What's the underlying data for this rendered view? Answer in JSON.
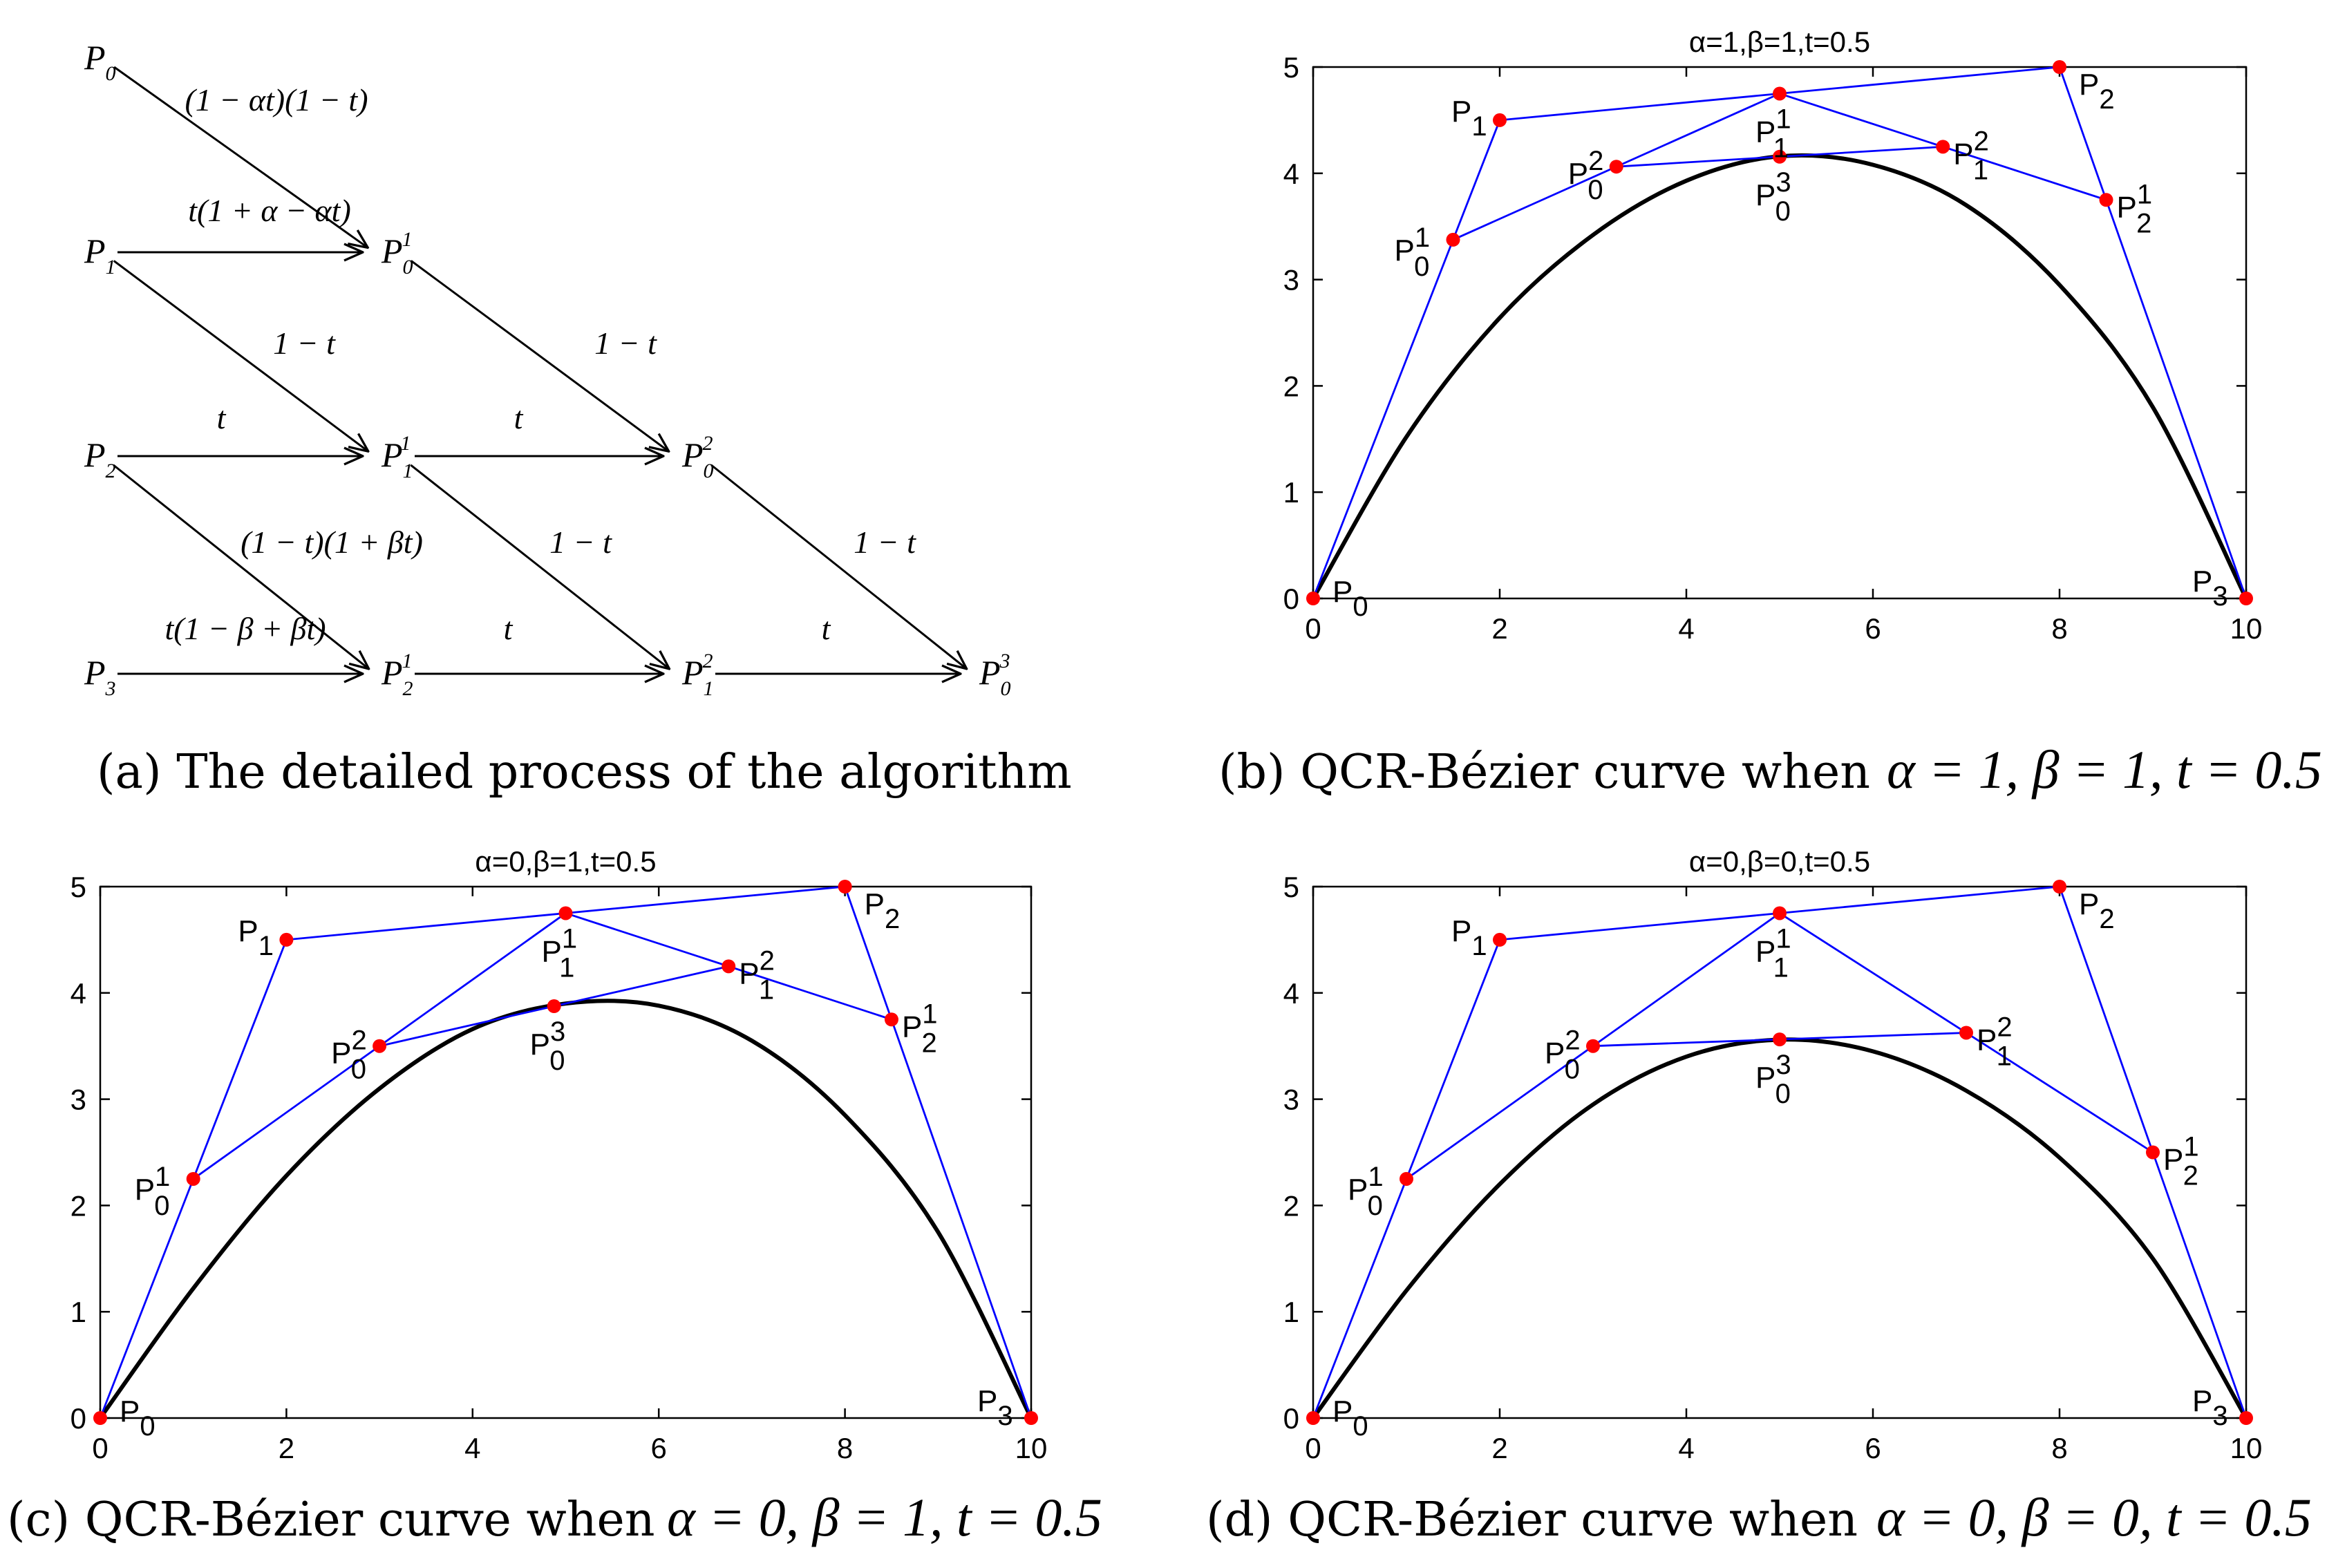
{
  "diagram": {
    "nodes": {
      "P0": {
        "base": "P",
        "sub": "0",
        "sup": ""
      },
      "P1": {
        "base": "P",
        "sub": "1",
        "sup": ""
      },
      "P2": {
        "base": "P",
        "sub": "2",
        "sup": ""
      },
      "P3": {
        "base": "P",
        "sub": "3",
        "sup": ""
      },
      "P01": {
        "base": "P",
        "sub": "0",
        "sup": "1"
      },
      "P11": {
        "base": "P",
        "sub": "1",
        "sup": "1"
      },
      "P21": {
        "base": "P",
        "sub": "2",
        "sup": "1"
      },
      "P02": {
        "base": "P",
        "sub": "0",
        "sup": "2"
      },
      "P12": {
        "base": "P",
        "sub": "1",
        "sup": "2"
      },
      "P03": {
        "base": "P",
        "sub": "0",
        "sup": "3"
      }
    },
    "edge_labels": {
      "p0_p01": "(1 − αt)(1 − t)",
      "p1_p01": "t(1 + α − αt)",
      "p1_p11": "1 − t",
      "p2_p11": "t",
      "p2_p21": "(1 − t)(1 + βt)",
      "p3_p21": "t(1 − β + βt)",
      "p01_p02": "1 − t",
      "p11_p02": "t",
      "p11_p12": "1 − t",
      "p21_p12": "t",
      "p02_p03": "1 − t",
      "p12_p03": "t"
    }
  },
  "captions": {
    "a": "(a) The detailed process of the algorithm",
    "b_text": "(b) QCR-Bézier curve when",
    "b_math": "α = 1, β = 1, t = 0.5",
    "c_text": "(c) QCR-Bézier curve when",
    "c_math": "α = 0, β = 1, t = 0.5",
    "d_text": "(d) QCR-Bézier curve when",
    "d_math": "α = 0, β = 0, t = 0.5"
  },
  "chart_data": [
    {
      "type": "line",
      "panel": "b",
      "title": "α=1,β=1,t=0.5",
      "xlim": [
        0,
        10
      ],
      "ylim": [
        0,
        5
      ],
      "xticks": [
        "0",
        "2",
        "4",
        "6",
        "8",
        "10"
      ],
      "yticks": [
        "0",
        "1",
        "2",
        "3",
        "4",
        "5"
      ],
      "colors": {
        "polygon": "#0000ff",
        "curve": "#000000",
        "points": "#ff0000"
      },
      "control_points": {
        "P0": [
          0,
          0
        ],
        "P1": [
          2,
          4.5
        ],
        "P2": [
          8,
          5
        ],
        "P3": [
          10,
          0
        ]
      },
      "points": {
        "P01": [
          1.5,
          3.375
        ],
        "P11": [
          5,
          4.75
        ],
        "P21": [
          8.5,
          3.75
        ],
        "P02": [
          3.25,
          4.0625
        ],
        "P12": [
          6.75,
          4.25
        ],
        "P03": [
          5,
          4.156
        ]
      },
      "series": [
        {
          "values": [
            [
              0,
              0
            ],
            [
              1,
              1.52
            ],
            [
              2,
              2.64
            ],
            [
              3,
              3.42
            ],
            [
              4,
              3.93
            ],
            [
              5,
              4.16
            ],
            [
              6,
              4.08
            ],
            [
              7,
              3.7
            ],
            [
              8,
              2.95
            ],
            [
              9,
              1.8
            ],
            [
              10,
              0
            ]
          ]
        }
      ]
    },
    {
      "type": "line",
      "panel": "c",
      "title": "α=0,β=1,t=0.5",
      "xlim": [
        0,
        10
      ],
      "ylim": [
        0,
        5
      ],
      "xticks": [
        "0",
        "2",
        "4",
        "6",
        "8",
        "10"
      ],
      "yticks": [
        "0",
        "1",
        "2",
        "3",
        "4",
        "5"
      ],
      "colors": {
        "polygon": "#0000ff",
        "curve": "#000000",
        "points": "#ff0000"
      },
      "control_points": {
        "P0": [
          0,
          0
        ],
        "P1": [
          2,
          4.5
        ],
        "P2": [
          8,
          5
        ],
        "P3": [
          10,
          0
        ]
      },
      "points": {
        "P01": [
          1,
          2.25
        ],
        "P11": [
          5,
          4.75
        ],
        "P21": [
          8.5,
          3.75
        ],
        "P02": [
          3,
          3.5
        ],
        "P12": [
          6.75,
          4.25
        ],
        "P03": [
          4.875,
          3.875
        ]
      },
      "series": [
        {
          "values": [
            [
              0,
              0
            ],
            [
              1,
              1.22
            ],
            [
              2,
              2.28
            ],
            [
              3,
              3.1
            ],
            [
              4,
              3.66
            ],
            [
              5,
              3.9
            ],
            [
              6,
              3.88
            ],
            [
              7,
              3.55
            ],
            [
              8,
              2.85
            ],
            [
              9,
              1.75
            ],
            [
              10,
              0
            ]
          ]
        }
      ]
    },
    {
      "type": "line",
      "panel": "d",
      "title": "α=0,β=0,t=0.5",
      "xlim": [
        0,
        10
      ],
      "ylim": [
        0,
        5
      ],
      "xticks": [
        "0",
        "2",
        "4",
        "6",
        "8",
        "10"
      ],
      "yticks": [
        "0",
        "1",
        "2",
        "3",
        "4",
        "5"
      ],
      "colors": {
        "polygon": "#0000ff",
        "curve": "#000000",
        "points": "#ff0000"
      },
      "control_points": {
        "P0": [
          0,
          0
        ],
        "P1": [
          2,
          4.5
        ],
        "P2": [
          8,
          5
        ],
        "P3": [
          10,
          0
        ]
      },
      "points": {
        "P01": [
          1,
          2.25
        ],
        "P11": [
          5,
          4.75
        ],
        "P21": [
          9,
          2.5
        ],
        "P02": [
          3,
          3.5
        ],
        "P12": [
          7,
          3.625
        ],
        "P03": [
          5,
          3.5625
        ]
      },
      "series": [
        {
          "values": [
            [
              0,
              0
            ],
            [
              1,
              1.2
            ],
            [
              2,
              2.2
            ],
            [
              3,
              2.95
            ],
            [
              4,
              3.4
            ],
            [
              5,
              3.56
            ],
            [
              6,
              3.45
            ],
            [
              7,
              3.08
            ],
            [
              8,
              2.45
            ],
            [
              9,
              1.5
            ],
            [
              10,
              0
            ]
          ]
        }
      ]
    }
  ]
}
